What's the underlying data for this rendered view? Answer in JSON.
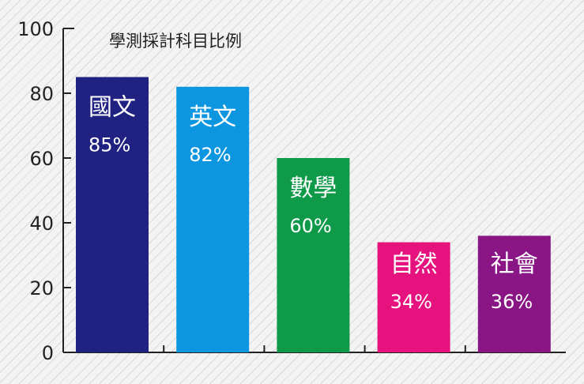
{
  "chart_data": {
    "type": "bar",
    "title": "學測採計科目比例",
    "categories": [
      "國文",
      "英文",
      "數學",
      "自然",
      "社會"
    ],
    "values": [
      85,
      82,
      60,
      34,
      36
    ],
    "value_labels": [
      "85%",
      "82%",
      "60%",
      "34%",
      "36%"
    ],
    "colors": [
      "#1f2280",
      "#0d96e0",
      "#0f9a4a",
      "#e6127e",
      "#8a1585"
    ],
    "ylim": [
      0,
      100
    ],
    "yticks": [
      0,
      20,
      40,
      60,
      80,
      100
    ],
    "xlabel": "",
    "ylabel": "",
    "grid": false,
    "legend": "none"
  }
}
